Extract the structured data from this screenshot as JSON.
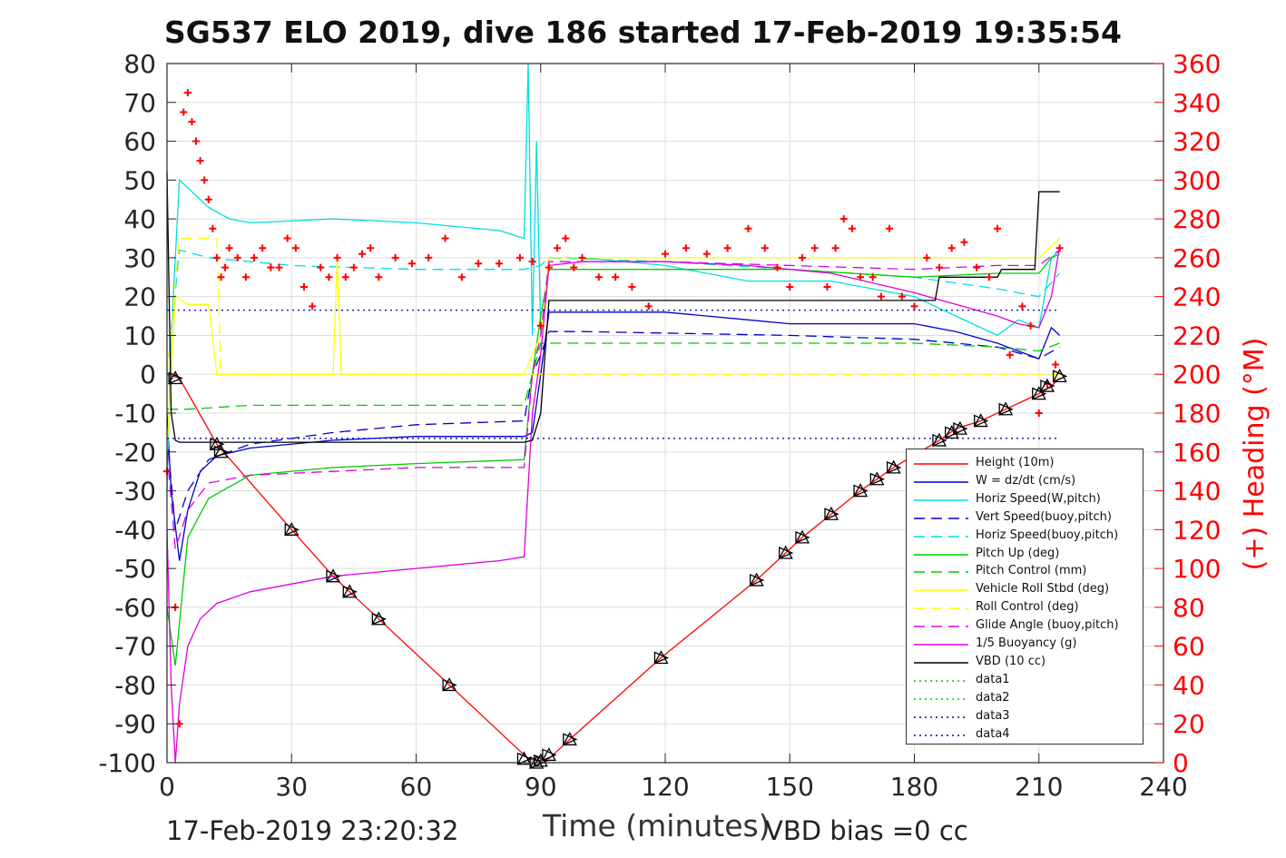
{
  "title": "SG537 ELO 2019, dive 186 started 17-Feb-2019 19:35:54",
  "footer": {
    "left": "17-Feb-2019 23:20:32",
    "xlabel": "Time (minutes)",
    "right": "VBD bias =0 cc"
  },
  "chart_data": {
    "type": "line",
    "title": "SG537 ELO 2019, dive 186 started 17-Feb-2019 19:35:54",
    "xlabel": "Time (minutes)",
    "ylabel_right": "(+) Heading (°M)",
    "xlim": [
      0,
      240
    ],
    "ylim_left": [
      -100,
      80
    ],
    "ylim_right": [
      0,
      360
    ],
    "xticks": [
      0,
      30,
      60,
      90,
      120,
      150,
      180,
      210,
      240
    ],
    "yticks_left": [
      -100,
      -90,
      -80,
      -70,
      -60,
      -50,
      -40,
      -30,
      -20,
      -10,
      0,
      10,
      20,
      30,
      40,
      50,
      60,
      70,
      80
    ],
    "yticks_right": [
      0,
      20,
      40,
      60,
      80,
      100,
      120,
      140,
      160,
      180,
      200,
      220,
      240,
      260,
      280,
      300,
      320,
      340,
      360
    ],
    "grid": true,
    "legend_position": "bottom-right",
    "series": [
      {
        "name": "Height (10m)",
        "color": "#ff0000",
        "style": "solid",
        "x": [
          0,
          3,
          12,
          30,
          40,
          44,
          51,
          68,
          87,
          89,
          92,
          97,
          119,
          142,
          149,
          153,
          160,
          167,
          171,
          175,
          186,
          190,
          196,
          202,
          210,
          213,
          215
        ],
        "y": [
          0,
          -1,
          -18,
          -40,
          -52,
          -56,
          -63,
          -80,
          -99,
          -99.5,
          -99,
          -94,
          -73,
          -53,
          -46,
          -42,
          -36,
          -30,
          -27,
          -24,
          -17,
          -14,
          -12,
          -9,
          -5,
          -3,
          -1
        ]
      },
      {
        "name": "W = dz/dt (cm/s)",
        "color": "#0000cc",
        "style": "solid",
        "x": [
          0,
          1,
          3,
          5,
          8,
          12,
          20,
          40,
          60,
          86,
          88,
          90,
          92,
          100,
          120,
          140,
          150,
          160,
          170,
          180,
          190,
          200,
          205,
          210,
          213,
          215
        ],
        "y": [
          -10,
          -30,
          -48,
          -35,
          -25,
          -21,
          -19,
          -17,
          -16,
          -16,
          -15,
          0,
          16,
          16,
          16,
          14,
          13,
          13,
          13,
          13,
          11,
          8,
          6,
          4,
          12,
          10
        ]
      },
      {
        "name": "Horiz Speed(W,pitch)",
        "color": "#00dddd",
        "style": "solid",
        "x": [
          0,
          1,
          3,
          5,
          10,
          15,
          20,
          40,
          60,
          80,
          86,
          87,
          88,
          89,
          90,
          92,
          100,
          120,
          140,
          160,
          180,
          190,
          200,
          205,
          210,
          213,
          215
        ],
        "y": [
          -30,
          10,
          50,
          48,
          43,
          40,
          39,
          40,
          39,
          37,
          35,
          80,
          10,
          60,
          10,
          30,
          30,
          28,
          24,
          24,
          20,
          15,
          10,
          14,
          12,
          30,
          32
        ]
      },
      {
        "name": "Vert Speed(buoy,pitch)",
        "color": "#0000cc",
        "style": "dashed",
        "x": [
          0,
          2,
          5,
          10,
          20,
          40,
          60,
          86,
          88,
          90,
          92,
          100,
          150,
          180,
          200,
          210,
          215
        ],
        "y": [
          -15,
          -40,
          -30,
          -22,
          -18,
          -15,
          -13,
          -12,
          0,
          5,
          11,
          11,
          10,
          9,
          7,
          4,
          7
        ]
      },
      {
        "name": "Horiz Speed(buoy,pitch)",
        "color": "#00dddd",
        "style": "dashed",
        "x": [
          0,
          3,
          10,
          30,
          60,
          86,
          90,
          92,
          120,
          150,
          180,
          200,
          210,
          215
        ],
        "y": [
          0,
          32,
          30,
          28,
          27,
          27,
          28,
          30,
          29,
          27,
          25,
          22,
          20,
          26
        ]
      },
      {
        "name": "Pitch Up (deg)",
        "color": "#00cc00",
        "style": "solid",
        "x": [
          0,
          2,
          5,
          10,
          20,
          40,
          60,
          86,
          88,
          90,
          92,
          120,
          150,
          180,
          200,
          210,
          213,
          215
        ],
        "y": [
          -60,
          -75,
          -42,
          -32,
          -26,
          -24,
          -23,
          -22,
          0,
          15,
          27,
          27,
          27,
          25,
          26,
          26,
          30,
          31
        ]
      },
      {
        "name": "Pitch Control (mm)",
        "color": "#00cc00",
        "style": "dashed",
        "x": [
          0,
          5,
          20,
          40,
          60,
          86,
          90,
          92,
          120,
          150,
          180,
          200,
          210,
          215
        ],
        "y": [
          -9,
          -9,
          -8,
          -8,
          -8,
          -8,
          8,
          8,
          8,
          8,
          8,
          7,
          6,
          8
        ]
      },
      {
        "name": "Vehicle Roll Stbd (deg)",
        "color": "#ffff00",
        "style": "solid",
        "x": [
          0,
          2,
          5,
          10,
          12,
          13,
          40,
          41,
          42,
          43,
          86,
          88,
          90,
          92,
          120,
          150,
          180,
          200,
          210,
          215
        ],
        "y": [
          -20,
          20,
          18,
          18,
          0,
          0,
          0,
          30,
          0,
          0,
          0,
          5,
          10,
          30,
          30,
          30,
          30,
          30,
          30,
          35
        ]
      },
      {
        "name": "Roll Control (deg)",
        "color": "#ffff00",
        "style": "dashed",
        "x": [
          0,
          3,
          12,
          13,
          40,
          60,
          86,
          90,
          92,
          120,
          150,
          180,
          200,
          210,
          215
        ],
        "y": [
          0,
          35,
          35,
          0,
          0,
          0,
          0,
          0,
          0,
          0,
          0,
          0,
          0,
          0,
          0
        ]
      },
      {
        "name": "Glide Angle (buoy,pitch)",
        "color": "#dd00dd",
        "style": "dashed",
        "x": [
          0,
          2,
          5,
          10,
          20,
          40,
          60,
          86,
          88,
          90,
          92,
          120,
          150,
          180,
          200,
          210,
          215
        ],
        "y": [
          -20,
          -45,
          -35,
          -28,
          -26,
          -25,
          -24,
          -24,
          0,
          10,
          29,
          29,
          28,
          27,
          28,
          28,
          32
        ]
      },
      {
        "name": "1/5 Buoyancy (g)",
        "color": "#dd00dd",
        "style": "solid",
        "x": [
          0,
          1,
          2,
          3,
          5,
          8,
          12,
          20,
          30,
          40,
          50,
          60,
          70,
          80,
          86,
          88,
          90,
          92,
          100,
          120,
          140,
          160,
          180,
          190,
          200,
          205,
          210,
          213,
          215
        ],
        "y": [
          -40,
          -80,
          -100,
          -85,
          -70,
          -63,
          -59,
          -56,
          -54,
          -52,
          -51,
          -50,
          -49,
          -48,
          -47,
          -10,
          5,
          28,
          29,
          29,
          28,
          26,
          21,
          18,
          15,
          13,
          12,
          20,
          33
        ]
      },
      {
        "name": "VBD (10 cc)",
        "color": "#000000",
        "style": "solid",
        "x": [
          0,
          1,
          2,
          3,
          10,
          40,
          80,
          86,
          88,
          90,
          92,
          100,
          150,
          185,
          186,
          200,
          201,
          209,
          210,
          215
        ],
        "y": [
          52,
          -10,
          -17,
          -17.5,
          -17.5,
          -17.5,
          -17.5,
          -17.5,
          -17,
          -10,
          19,
          19,
          19,
          19,
          25,
          25,
          27,
          27,
          47,
          47
        ]
      },
      {
        "name": "data1",
        "color": "#00cc00",
        "style": "dotted",
        "x": [],
        "y": []
      },
      {
        "name": "data2",
        "color": "#00cc00",
        "style": "dotted",
        "x": [],
        "y": []
      },
      {
        "name": "data3",
        "color": "#0000cc",
        "style": "dotted",
        "x": [
          0,
          215
        ],
        "y": [
          16.5,
          16.5
        ]
      },
      {
        "name": "data4",
        "color": "#0000cc",
        "style": "dotted",
        "x": [
          0,
          215
        ],
        "y": [
          -16.5,
          -16.5
        ]
      }
    ],
    "heading_series": {
      "axis": "right",
      "color": "#ff0000",
      "marker": "+",
      "x": [
        0,
        2,
        3,
        4,
        5,
        6,
        7,
        8,
        9,
        10,
        11,
        12,
        13,
        14,
        15,
        17,
        19,
        21,
        23,
        25,
        27,
        29,
        31,
        33,
        35,
        37,
        39,
        41,
        43,
        45,
        47,
        49,
        51,
        55,
        59,
        63,
        67,
        71,
        75,
        80,
        85,
        88,
        90,
        92,
        94,
        96,
        98,
        100,
        104,
        108,
        112,
        116,
        120,
        125,
        130,
        135,
        140,
        144,
        147,
        150,
        153,
        156,
        159,
        161,
        163,
        165,
        167,
        170,
        172,
        174,
        177,
        180,
        183,
        186,
        189,
        192,
        195,
        198,
        200,
        203,
        206,
        208,
        210,
        212,
        214,
        215
      ],
      "y": [
        150,
        80,
        20,
        335,
        345,
        330,
        320,
        310,
        300,
        290,
        275,
        260,
        250,
        255,
        265,
        260,
        250,
        260,
        265,
        255,
        255,
        270,
        265,
        245,
        235,
        255,
        250,
        260,
        250,
        255,
        262,
        265,
        250,
        260,
        257,
        260,
        270,
        250,
        257,
        257,
        260,
        258,
        225,
        255,
        265,
        270,
        255,
        260,
        250,
        250,
        245,
        235,
        262,
        265,
        262,
        265,
        275,
        265,
        255,
        245,
        260,
        265,
        245,
        265,
        280,
        275,
        250,
        250,
        240,
        275,
        240,
        235,
        260,
        255,
        265,
        268,
        255,
        250,
        275,
        210,
        235,
        225,
        180,
        195,
        205,
        265
      ]
    },
    "markers": {
      "color": "#000000",
      "x": [
        2,
        12,
        13,
        30,
        40,
        44,
        51,
        68,
        86,
        89,
        90,
        92,
        97,
        119,
        142,
        149,
        153,
        160,
        167,
        171,
        175,
        186,
        189,
        191,
        196,
        202,
        210,
        212,
        215
      ],
      "y": [
        -1,
        -18,
        -20,
        -40,
        -52,
        -56,
        -63,
        -80,
        -99,
        -100,
        -99.5,
        -98,
        -94,
        -73,
        -53,
        -46,
        -42,
        -36,
        -30,
        -27,
        -24,
        -17,
        -15,
        -14,
        -12,
        -9,
        -5,
        -3,
        -0.5
      ]
    }
  },
  "legend": {
    "items": [
      {
        "label": "Height (10m)",
        "color": "#ff0000",
        "style": "solid"
      },
      {
        "label": "W = dz/dt (cm/s)",
        "color": "#0000cc",
        "style": "solid"
      },
      {
        "label": "Horiz Speed(W,pitch)",
        "color": "#00dddd",
        "style": "solid"
      },
      {
        "label": "Vert Speed(buoy,pitch)",
        "color": "#0000cc",
        "style": "dashed"
      },
      {
        "label": "Horiz Speed(buoy,pitch)",
        "color": "#00dddd",
        "style": "dashed"
      },
      {
        "label": "Pitch Up (deg)",
        "color": "#00cc00",
        "style": "solid"
      },
      {
        "label": "Pitch Control (mm)",
        "color": "#00cc00",
        "style": "dashed"
      },
      {
        "label": "Vehicle Roll Stbd (deg)",
        "color": "#ffff00",
        "style": "solid"
      },
      {
        "label": "Roll Control (deg)",
        "color": "#ffff00",
        "style": "dashed"
      },
      {
        "label": "Glide Angle (buoy,pitch)",
        "color": "#dd00dd",
        "style": "dashed"
      },
      {
        "label": "1/5 Buoyancy (g)",
        "color": "#dd00dd",
        "style": "solid"
      },
      {
        "label": "VBD (10 cc)",
        "color": "#000000",
        "style": "solid"
      },
      {
        "label": "data1",
        "color": "#00cc00",
        "style": "dotted"
      },
      {
        "label": "data2",
        "color": "#00cc00",
        "style": "dotted"
      },
      {
        "label": "data3",
        "color": "#0000cc",
        "style": "dotted"
      },
      {
        "label": "data4",
        "color": "#0000cc",
        "style": "dotted"
      }
    ]
  }
}
